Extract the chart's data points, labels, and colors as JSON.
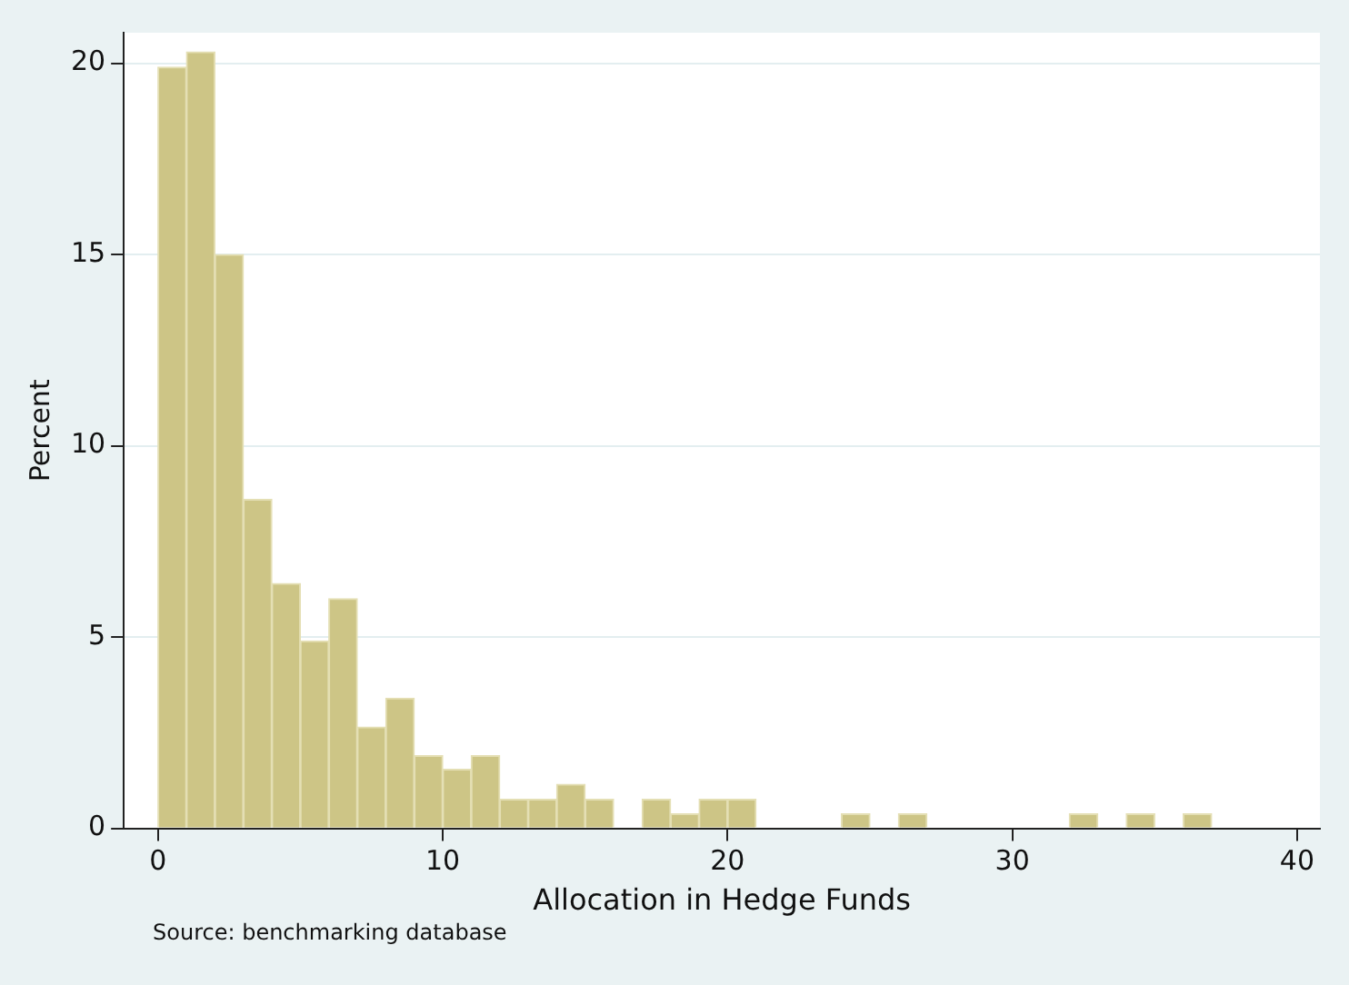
{
  "chart_data": {
    "type": "histogram",
    "xlabel": "Allocation in Hedge Funds",
    "ylabel": "Percent",
    "annotations": [
      "Source: benchmarking database"
    ],
    "bins": [
      0,
      1,
      2,
      3,
      4,
      5,
      6,
      7,
      8,
      9,
      10,
      11,
      12,
      13,
      14,
      15,
      16,
      17,
      18,
      19,
      20,
      21,
      22,
      23,
      24,
      25,
      26,
      27,
      28,
      29,
      30,
      31,
      32,
      33,
      34,
      35,
      36,
      37
    ],
    "values": [
      19.9,
      20.3,
      15.0,
      8.6,
      6.4,
      4.9,
      6.0,
      2.65,
      3.4,
      1.9,
      1.54,
      1.9,
      0.76,
      0.76,
      1.15,
      0.76,
      0,
      0.76,
      0.38,
      0.76,
      0.76,
      0,
      0,
      0,
      0.38,
      0,
      0.38,
      0,
      0,
      0,
      0,
      0,
      0.38,
      0,
      0.38,
      0,
      0.38
    ],
    "color": "#cdc586",
    "xlim": [
      -1.2,
      40.8
    ],
    "xticks": [
      0,
      10,
      20,
      30,
      40
    ],
    "ylim": [
      0,
      20.8
    ],
    "yticks": [
      0,
      5,
      10,
      15,
      20
    ],
    "grid": "y",
    "legend": false
  }
}
